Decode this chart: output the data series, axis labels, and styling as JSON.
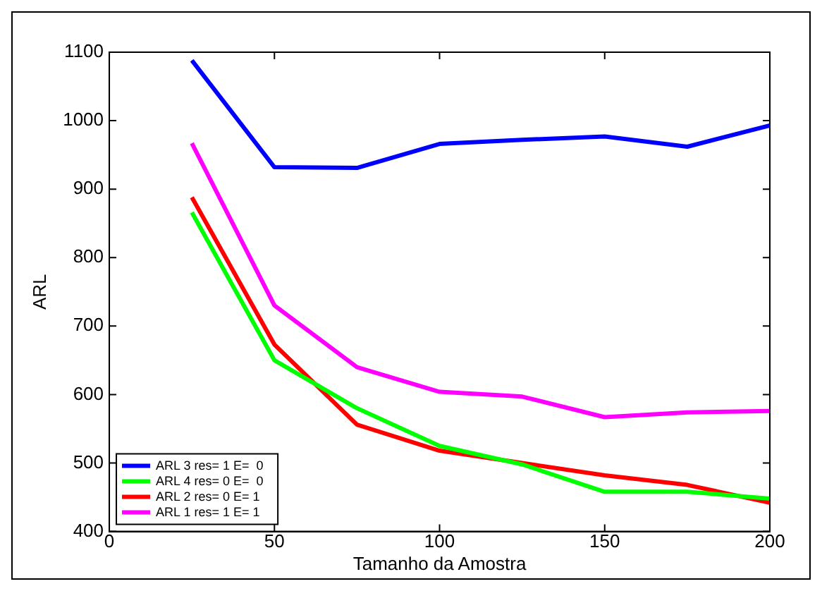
{
  "chart_data": {
    "type": "line",
    "xlabel": "Tamanho da Amostra",
    "ylabel": "ARL",
    "x": [
      25,
      50,
      75,
      100,
      125,
      150,
      175,
      200
    ],
    "series": [
      {
        "name": "ARL 3 res= 1 E=  0",
        "color": "#0000ff",
        "values": [
          1088,
          932,
          931,
          966,
          972,
          977,
          962,
          993
        ]
      },
      {
        "name": "ARL 4 res= 0 E=  0",
        "color": "#00ff00",
        "values": [
          866,
          650,
          580,
          525,
          498,
          458,
          458,
          448
        ]
      },
      {
        "name": "ARL 2 res= 0 E= 1",
        "color": "#ff0000",
        "values": [
          888,
          673,
          556,
          518,
          500,
          482,
          468,
          442
        ]
      },
      {
        "name": "ARL 1 res= 1 E= 1",
        "color": "#ff00ff",
        "values": [
          967,
          730,
          640,
          604,
          597,
          567,
          574,
          576
        ]
      }
    ],
    "xlim": [
      0,
      200
    ],
    "xticks": [
      0,
      50,
      100,
      150,
      200
    ],
    "ylim": [
      400,
      1100
    ],
    "yticks": [
      400,
      500,
      600,
      700,
      800,
      900,
      1000,
      1100
    ],
    "legend": "bottom left",
    "grid": false,
    "marker": "none",
    "line_style": "solid"
  }
}
